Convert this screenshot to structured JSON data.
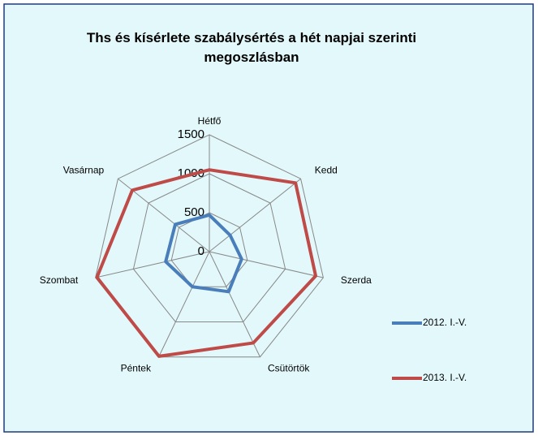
{
  "chart_data": {
    "type": "radar",
    "title": "Ths és kísérlete szabálysértés a hét napjai szerinti megoszlásban",
    "categories": [
      "Hétfő",
      "Kedd",
      "Szerda",
      "Csütörtök",
      "Péntek",
      "Szombat",
      "Vasárnap"
    ],
    "series": [
      {
        "name": "2012. I.-V.",
        "color": "#4a7ebb",
        "values": [
          470,
          340,
          425,
          570,
          500,
          575,
          560
        ]
      },
      {
        "name": "2013. I.-V.",
        "color": "#be4b48",
        "values": [
          1050,
          1415,
          1400,
          1300,
          1490,
          1480,
          1265
        ]
      }
    ],
    "ylim": [
      0,
      1500
    ],
    "yticks": [
      0,
      500,
      1000,
      1500
    ],
    "grid": true,
    "legend": "right"
  }
}
